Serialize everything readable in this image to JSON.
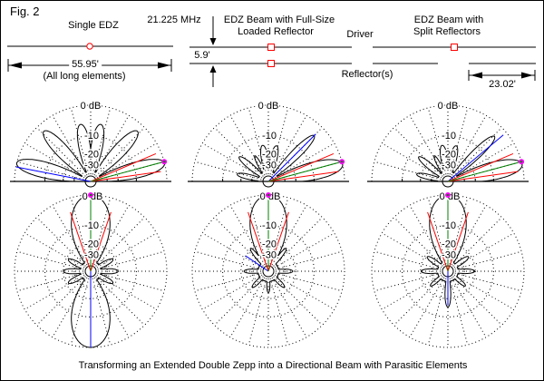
{
  "header": {
    "fig_label": "Fig. 2",
    "frequency": "21.225 MHz"
  },
  "caption": "Transforming an Extended Double Zepp into a Directional Beam with Parasitic Elements",
  "wire_labels": {
    "driver": "Driver",
    "reflector": "Reflector(s)"
  },
  "configs": [
    {
      "title_lines": [
        "Single EDZ"
      ],
      "length_label": "55.95'",
      "length_note": "(All long elements)"
    },
    {
      "title_lines": [
        "EDZ Beam with Full-Size",
        "Loaded Reflector"
      ],
      "spacing_label": "5.9'"
    },
    {
      "title_lines": [
        "EDZ Beam with",
        "Split Reflectors"
      ],
      "reflector_length_label": "23.02'"
    }
  ],
  "colors": {
    "background": "#ffffff",
    "wire": "#000000",
    "pattern": "#000000",
    "grid": "#000000",
    "feedpoint_marker": "#ff0000",
    "cursor_green": "#008000",
    "cursor_red": "#ff0000",
    "cursor_blue": "#0000ff",
    "marker_magenta": "#ff00ff"
  },
  "chart_data": [
    {
      "id": "elevation-pattern-single-edz",
      "type": "polar",
      "plane": "elevation",
      "config": "Single EDZ",
      "scale": {
        "outer_label": "0 dB",
        "outer_db": 0,
        "ring_dbs": [
          -10,
          -20,
          -30
        ],
        "ring_labels": [
          "-10",
          "-20",
          "-30"
        ],
        "radial_step_deg": 15,
        "radius_ratio_per_10db": 0.6
      },
      "lobes_deg_hw_peak_exp": [
        [
          14,
          16,
          1.0,
          0.9
        ],
        [
          47,
          16,
          0.9,
          1.1
        ],
        [
          80,
          16,
          0.76,
          1
        ],
        [
          100,
          16,
          0.76,
          1
        ],
        [
          133,
          16,
          0.9,
          1.1
        ],
        [
          166,
          16,
          1.0,
          0.9
        ]
      ],
      "cursors": {
        "green_deg": 15,
        "green_len": 1.0,
        "marker_at_green_tip": true,
        "red_degs": [
          8,
          23
        ],
        "red_len": 0.93,
        "blue": {
          "deg": 169,
          "len": 1.0
        }
      }
    },
    {
      "id": "elevation-pattern-loaded-reflector",
      "type": "polar",
      "plane": "elevation",
      "config": "EDZ Beam with Full-Size Loaded Reflector",
      "scale": {
        "outer_label": "0 dB",
        "outer_db": 0,
        "ring_dbs": [
          -10,
          -20,
          -30
        ],
        "ring_labels": [
          "-10",
          "-20",
          "-30"
        ],
        "radial_step_deg": 15,
        "radius_ratio_per_10db": 0.6
      },
      "lobes_deg_hw_peak_exp": [
        [
          13,
          17,
          1.0,
          0.8
        ],
        [
          45,
          13,
          0.85,
          1.3
        ],
        [
          77,
          15,
          0.48,
          1
        ],
        [
          99,
          15,
          0.48,
          1
        ],
        [
          118,
          10,
          0.38,
          1
        ],
        [
          140,
          12,
          0.5,
          1
        ],
        [
          167,
          12,
          0.42,
          0.9
        ]
      ],
      "cursors": {
        "green_deg": 15,
        "green_len": 1.0,
        "marker_at_green_tip": true,
        "red_degs": [
          8,
          23
        ],
        "red_len": 0.93,
        "blue": {
          "deg": 45,
          "len": 0.88
        }
      }
    },
    {
      "id": "elevation-pattern-split-reflectors",
      "type": "polar",
      "plane": "elevation",
      "config": "EDZ Beam with Split Reflectors",
      "scale": {
        "outer_label": "0 dB",
        "outer_db": 0,
        "ring_dbs": [
          -10,
          -20,
          -30
        ],
        "ring_labels": [
          "-10",
          "-20",
          "-30"
        ],
        "radial_step_deg": 15,
        "radius_ratio_per_10db": 0.6
      },
      "lobes_deg_hw_peak_exp": [
        [
          13,
          17,
          1.0,
          0.8
        ],
        [
          44,
          13,
          0.85,
          1.3
        ],
        [
          77,
          15,
          0.48,
          1
        ],
        [
          99,
          15,
          0.48,
          1
        ],
        [
          118,
          10,
          0.38,
          1
        ],
        [
          140,
          12,
          0.5,
          1
        ],
        [
          167,
          12,
          0.42,
          0.9
        ]
      ],
      "cursors": {
        "green_deg": 15,
        "green_len": 1.0,
        "marker_at_green_tip": true,
        "red_degs": [
          8,
          23
        ],
        "red_len": 0.93,
        "blue": {
          "deg": 40,
          "len": 0.95
        }
      }
    },
    {
      "id": "azimuth-pattern-single-edz",
      "type": "polar",
      "plane": "azimuth",
      "config": "Single EDZ",
      "scale": {
        "outer_label": "0 dB",
        "outer_db": 0,
        "ring_dbs": [
          -10,
          -20,
          -30
        ],
        "ring_labels": [
          "-10",
          "-20",
          "-30"
        ],
        "radial_step_deg": 15,
        "radius_ratio_per_10db": 0.6
      },
      "lobes_deg_hw_peak_exp": [
        [
          0,
          38,
          1.0,
          0.8
        ],
        [
          180,
          38,
          1.0,
          0.8
        ],
        [
          62,
          15,
          0.33,
          1
        ],
        [
          90,
          15,
          0.36,
          1
        ],
        [
          118,
          15,
          0.33,
          1
        ],
        [
          242,
          15,
          0.33,
          1
        ],
        [
          270,
          15,
          0.36,
          1
        ],
        [
          298,
          15,
          0.33,
          1
        ]
      ],
      "cursors": {
        "green_deg": 0,
        "green_len": 1.0,
        "marker_at_green_tip": true,
        "red_degs": [
          -19,
          19
        ],
        "red_len": 0.82,
        "blue": {
          "deg": 180,
          "len": 1.0
        }
      }
    },
    {
      "id": "azimuth-pattern-loaded-reflector",
      "type": "polar",
      "plane": "azimuth",
      "config": "EDZ Beam with Full-Size Loaded Reflector",
      "scale": {
        "outer_label": "0 dB",
        "outer_db": 0,
        "ring_dbs": [
          -10,
          -20,
          -30
        ],
        "ring_labels": [
          "-10",
          "-20",
          "-30"
        ],
        "radial_step_deg": 15,
        "radius_ratio_per_10db": 0.6
      },
      "lobes_deg_hw_peak_exp": [
        [
          0,
          36,
          1.0,
          0.8
        ],
        [
          38,
          10,
          0.38,
          1
        ],
        [
          322,
          10,
          0.38,
          1
        ],
        [
          90,
          14,
          0.32,
          1
        ],
        [
          270,
          14,
          0.32,
          1
        ],
        [
          135,
          13,
          0.3,
          1
        ],
        [
          225,
          13,
          0.3,
          1
        ],
        [
          180,
          12,
          0.28,
          1
        ]
      ],
      "cursors": {
        "green_deg": 0,
        "green_len": 1.0,
        "marker_at_green_tip": true,
        "red_degs": [
          -19,
          19
        ],
        "red_len": 0.82,
        "blue": {
          "deg": 304,
          "len": 0.36
        }
      }
    },
    {
      "id": "azimuth-pattern-split-reflectors",
      "type": "polar",
      "plane": "azimuth",
      "config": "EDZ Beam with Split Reflectors",
      "scale": {
        "outer_label": "0 dB",
        "outer_db": 0,
        "ring_dbs": [
          -10,
          -20,
          -30
        ],
        "ring_labels": [
          "-10",
          "-20",
          "-30"
        ],
        "radial_step_deg": 15,
        "radius_ratio_per_10db": 0.6
      },
      "lobes_deg_hw_peak_exp": [
        [
          0,
          36,
          1.0,
          0.8
        ],
        [
          55,
          14,
          0.33,
          1
        ],
        [
          305,
          14,
          0.33,
          1
        ],
        [
          90,
          14,
          0.35,
          1
        ],
        [
          270,
          14,
          0.35,
          1
        ],
        [
          130,
          12,
          0.3,
          1
        ],
        [
          230,
          12,
          0.3,
          1
        ],
        [
          180,
          14,
          0.47,
          1.2
        ]
      ],
      "cursors": {
        "green_deg": 0,
        "green_len": 1.0,
        "marker_at_green_tip": true,
        "red_degs": [
          -19,
          19
        ],
        "red_len": 0.82,
        "blue": {
          "deg": 180,
          "len": 0.45
        }
      }
    }
  ]
}
